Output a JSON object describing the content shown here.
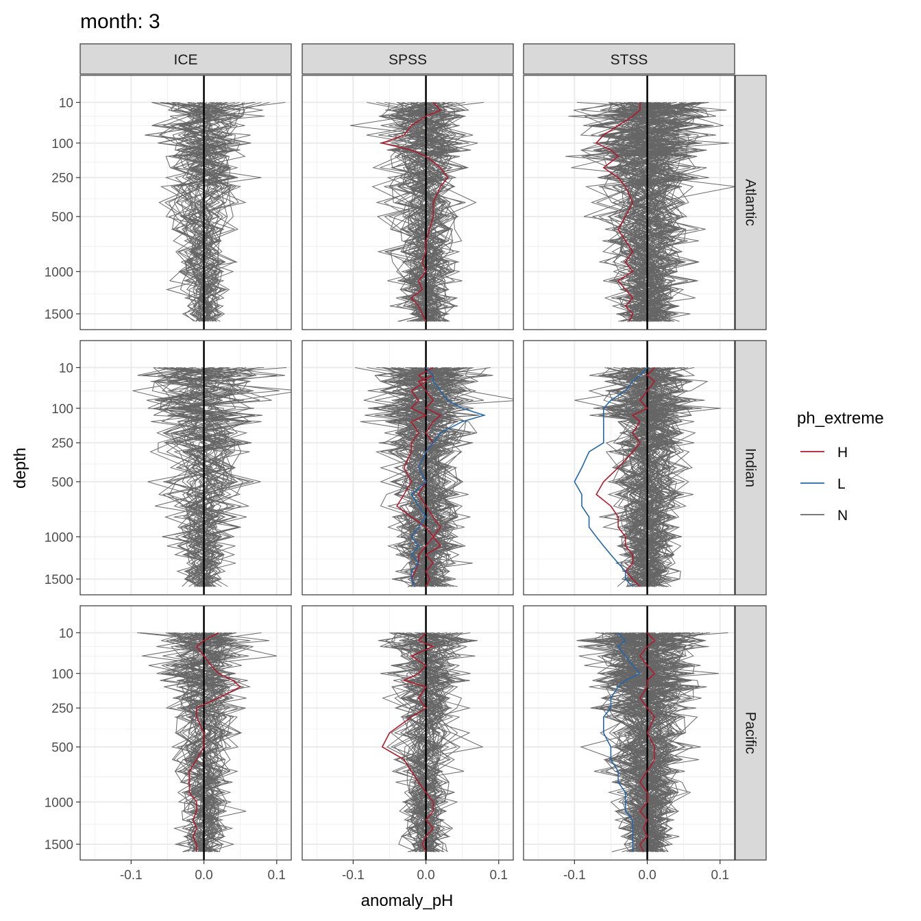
{
  "chart_data": {
    "type": "line",
    "title": "month: 3",
    "xlabel": "anomaly_pH",
    "ylabel": "depth",
    "x_range": [
      -0.17,
      0.12
    ],
    "x_ticks": [
      -0.1,
      0.0,
      0.1
    ],
    "x_tick_labels": [
      "-0.1",
      "0.0",
      "0.1"
    ],
    "y_scale": "sqrt",
    "y_reversed": true,
    "y_range": [
      0,
      1600
    ],
    "y_ticks": [
      10,
      100,
      250,
      500,
      1000,
      1500
    ],
    "y_tick_labels": [
      "10",
      "100",
      "250",
      "500",
      "1000",
      "1500"
    ],
    "grid": true,
    "vline_x": 0,
    "columns": [
      "ICE",
      "SPSS",
      "STSS"
    ],
    "rows": [
      "Atlantic",
      "Indian",
      "Pacific"
    ],
    "legend": {
      "title": "ph_extreme",
      "position": "right",
      "items": [
        {
          "label": "H",
          "color": "#B2182B"
        },
        {
          "label": "L",
          "color": "#2166AC"
        },
        {
          "label": "N",
          "color": "#666666"
        }
      ]
    },
    "depth_levels": [
      10,
      20,
      30,
      50,
      75,
      100,
      125,
      150,
      200,
      250,
      300,
      400,
      500,
      600,
      700,
      800,
      900,
      1000,
      1100,
      1200,
      1300,
      1400,
      1500,
      1600
    ],
    "panels": [
      {
        "column": "ICE",
        "row": "Atlantic",
        "highlighted": [],
        "n_profiles": 45,
        "background_profiles_note": "gray N profiles, spread ~±0.06 near surface, ~±0.015 at depth",
        "sample_profiles": [
          {
            "extreme": "N",
            "anomaly": [
              0.0,
              -0.02,
              0.01,
              -0.03,
              -0.06,
              -0.04,
              0.0,
              0.02,
              -0.01,
              0.0,
              -0.01,
              0.0,
              -0.005,
              0.0,
              0.005,
              0.0,
              -0.005,
              0.0,
              0.005,
              -0.005,
              0.0,
              0.005,
              -0.01,
              0.0
            ]
          },
          {
            "extreme": "N",
            "anomaly": [
              0.09,
              0.05,
              0.03,
              0.04,
              0.02,
              0.03,
              0.01,
              -0.01,
              0.0,
              0.01,
              0.005,
              0.0,
              0.01,
              0.005,
              0.0,
              0.01,
              0.005,
              0.0,
              0.005,
              0.01,
              0.0,
              0.005,
              0.0,
              0.005
            ]
          }
        ]
      },
      {
        "column": "SPSS",
        "row": "Atlantic",
        "highlighted": [
          {
            "extreme": "H",
            "anomaly": [
              0.01,
              0.02,
              0.0,
              -0.02,
              -0.03,
              -0.06,
              -0.02,
              0.0,
              0.02,
              0.03,
              0.02,
              0.01,
              0.01,
              0.005,
              0.0,
              0.0,
              -0.005,
              0.0,
              -0.01,
              -0.005,
              -0.02,
              -0.01,
              -0.005,
              0.0
            ]
          }
        ],
        "n_profiles": 60,
        "background_profiles_note": "gray N profiles, a few deep negative excursions to about -0.08 between 250 and 800 m"
      },
      {
        "column": "STSS",
        "row": "Atlantic",
        "highlighted": [
          {
            "extreme": "H",
            "anomaly": [
              -0.01,
              -0.01,
              -0.02,
              -0.04,
              -0.06,
              -0.07,
              -0.05,
              -0.04,
              -0.06,
              -0.04,
              -0.03,
              -0.02,
              -0.03,
              -0.04,
              -0.03,
              -0.02,
              -0.03,
              -0.02,
              -0.04,
              -0.03,
              -0.02,
              -0.03,
              -0.02,
              -0.025
            ]
          }
        ],
        "n_profiles": 80,
        "background_profiles_note": "gray N profiles, wide spread near surface from -0.12 to 0.08"
      },
      {
        "column": "ICE",
        "row": "Indian",
        "highlighted": [],
        "n_profiles": 45,
        "background_profiles_note": "gray N profiles, strong spread near 75-125 m reaching ±0.12"
      },
      {
        "column": "SPSS",
        "row": "Indian",
        "highlighted": [
          {
            "extreme": "H",
            "anomaly": [
              0.01,
              -0.01,
              0.0,
              -0.02,
              -0.01,
              -0.02,
              0.0,
              -0.02,
              -0.01,
              -0.02,
              -0.02,
              -0.03,
              -0.02,
              -0.03,
              -0.04,
              -0.02,
              0.0,
              0.01,
              0.0,
              -0.01,
              -0.01,
              -0.015,
              -0.02,
              -0.015
            ]
          },
          {
            "extreme": "H",
            "anomaly": [
              0.0,
              0.01,
              -0.01,
              0.0,
              0.01,
              0.0,
              0.02,
              0.01,
              0.0,
              0.01,
              0.0,
              -0.01,
              0.0,
              -0.01,
              0.0,
              0.01,
              0.02,
              0.01,
              0.02,
              0.0,
              0.01,
              0.0,
              0.005,
              0.0
            ]
          },
          {
            "extreme": "L",
            "anomaly": [
              0.0,
              0.01,
              0.01,
              0.02,
              0.03,
              0.05,
              0.08,
              0.05,
              0.02,
              0.01,
              0.0,
              -0.01,
              0.0,
              -0.02,
              -0.01,
              0.0,
              -0.01,
              -0.02,
              -0.01,
              -0.02,
              -0.01,
              -0.02,
              -0.02,
              -0.015
            ]
          }
        ],
        "n_profiles": 70,
        "background_profiles_note": "gray N profiles, spread to ±0.1 around 100-150 m"
      },
      {
        "column": "STSS",
        "row": "Indian",
        "highlighted": [
          {
            "extreme": "H",
            "anomaly": [
              0.01,
              0.0,
              0.01,
              0.0,
              -0.01,
              0.0,
              -0.02,
              -0.01,
              -0.02,
              -0.01,
              -0.02,
              -0.04,
              -0.06,
              -0.07,
              -0.05,
              -0.04,
              -0.04,
              -0.03,
              -0.03,
              -0.02,
              -0.02,
              -0.03,
              -0.02,
              -0.01
            ]
          },
          {
            "extreme": "L",
            "anomaly": [
              0.0,
              -0.01,
              -0.02,
              -0.03,
              -0.05,
              -0.06,
              -0.06,
              -0.06,
              -0.06,
              -0.06,
              -0.08,
              -0.09,
              -0.1,
              -0.09,
              -0.09,
              -0.08,
              -0.08,
              -0.07,
              -0.06,
              -0.05,
              -0.04,
              -0.03,
              -0.03,
              -0.02
            ]
          }
        ],
        "n_profiles": 80,
        "background_profiles_note": "gray N profiles"
      },
      {
        "column": "ICE",
        "row": "Pacific",
        "highlighted": [
          {
            "extreme": "H",
            "anomaly": [
              0.02,
              0.0,
              -0.01,
              0.0,
              0.01,
              0.02,
              0.04,
              0.05,
              0.02,
              -0.01,
              -0.01,
              0.0,
              0.0,
              -0.01,
              -0.02,
              -0.02,
              -0.02,
              -0.01,
              -0.01,
              -0.015,
              -0.01,
              -0.015,
              -0.01,
              -0.01
            ]
          }
        ],
        "n_profiles": 50,
        "background_profiles_note": "gray N profiles, one deep excursion to +0.06 near 1000-1300 m"
      },
      {
        "column": "SPSS",
        "row": "Pacific",
        "highlighted": [
          {
            "extreme": "H",
            "anomaly": [
              0.0,
              -0.01,
              0.01,
              -0.02,
              0.0,
              -0.01,
              -0.03,
              0.0,
              -0.01,
              0.0,
              -0.02,
              -0.05,
              -0.06,
              -0.03,
              -0.02,
              -0.01,
              0.0,
              0.01,
              0.01,
              0.0,
              0.01,
              0.0,
              -0.005,
              0.0
            ]
          }
        ],
        "n_profiles": 55,
        "background_profiles_note": "gray N profiles, some deep negative excursions to -0.12 between 200 and 600 m"
      },
      {
        "column": "STSS",
        "row": "Pacific",
        "highlighted": [
          {
            "extreme": "H",
            "anomaly": [
              0.0,
              0.01,
              0.0,
              -0.01,
              0.0,
              0.01,
              0.0,
              0.0,
              -0.01,
              0.0,
              0.01,
              0.0,
              0.01,
              0.01,
              0.0,
              -0.01,
              0.0,
              0.0,
              -0.01,
              0.0,
              -0.005,
              0.0,
              -0.01,
              -0.005
            ]
          },
          {
            "extreme": "L",
            "anomaly": [
              -0.04,
              -0.03,
              -0.04,
              -0.03,
              -0.02,
              -0.01,
              -0.03,
              -0.04,
              -0.05,
              -0.05,
              -0.06,
              -0.06,
              -0.05,
              -0.05,
              -0.04,
              -0.04,
              -0.03,
              -0.03,
              -0.03,
              -0.02,
              -0.02,
              -0.02,
              -0.02,
              -0.02
            ]
          }
        ],
        "n_profiles": 90,
        "background_profiles_note": "gray N profiles, spread -0.15 to 0.08 near 100-150 m"
      }
    ]
  }
}
